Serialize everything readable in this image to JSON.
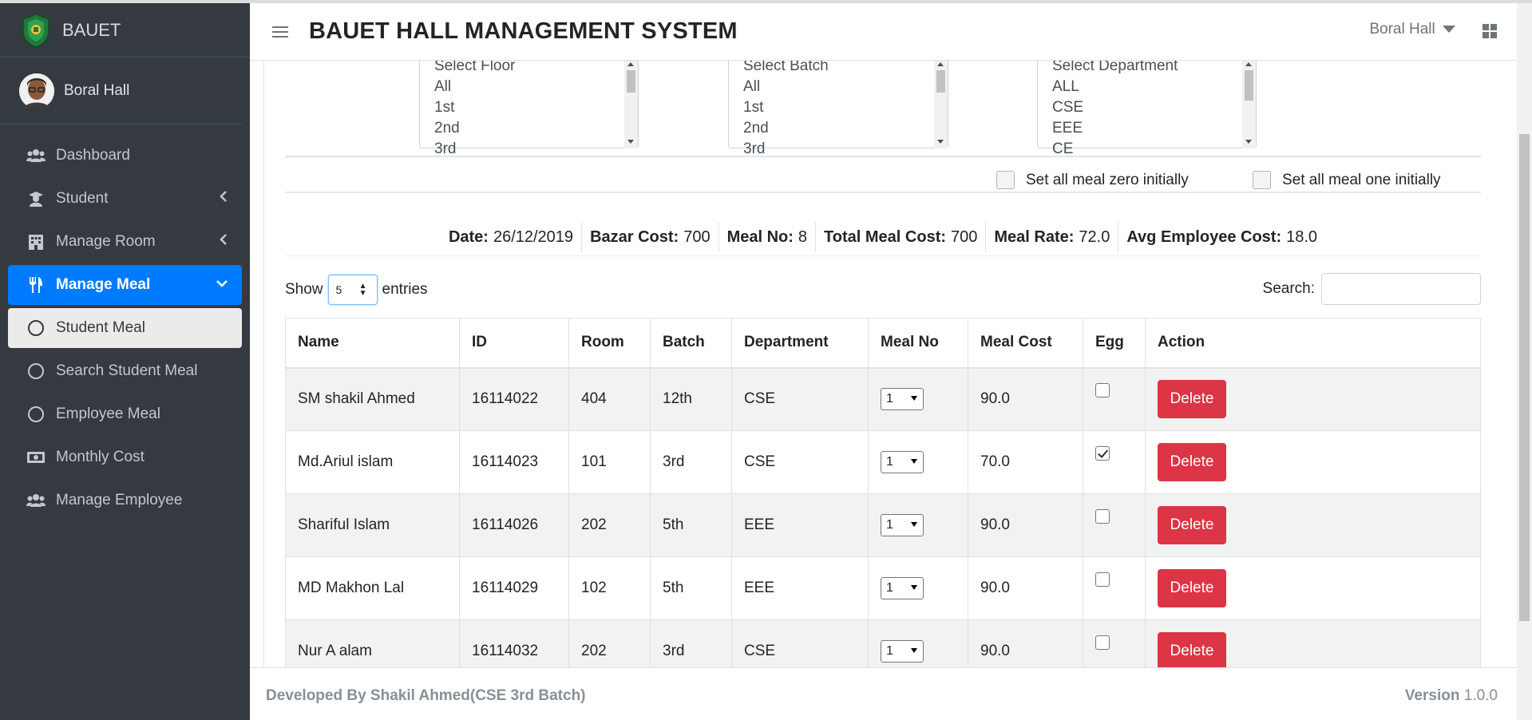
{
  "brand": {
    "name": "BAUET"
  },
  "user": {
    "name": "Boral Hall"
  },
  "sidebar": {
    "items": [
      {
        "label": "Dashboard",
        "icon": "users-icon"
      },
      {
        "label": "Student",
        "icon": "graduate-icon"
      },
      {
        "label": "Manage Room",
        "icon": "building-icon"
      },
      {
        "label": "Manage Meal",
        "icon": "utensils-icon"
      },
      {
        "label": "Student Meal",
        "icon": "circle-icon"
      },
      {
        "label": "Search Student Meal",
        "icon": "circle-icon"
      },
      {
        "label": "Employee Meal",
        "icon": "circle-icon"
      },
      {
        "label": "Monthly Cost",
        "icon": "money-icon"
      },
      {
        "label": "Manage Employee",
        "icon": "users-icon"
      }
    ]
  },
  "header": {
    "title": "BAUET HALL MANAGEMENT SYSTEM",
    "hall": "Boral Hall"
  },
  "filters": {
    "floor": [
      "Select Floor",
      "All",
      "1st",
      "2nd",
      "3rd"
    ],
    "batch": [
      "Select Batch",
      "All",
      "1st",
      "2nd",
      "3rd"
    ],
    "department": [
      "Select Department",
      "ALL",
      "CSE",
      "EEE",
      "CE"
    ]
  },
  "checkboxes": {
    "zero": "Set all meal zero initially",
    "one": "Set all meal one initially"
  },
  "stats": {
    "date_label": "Date:",
    "date": "26/12/2019",
    "bazar_label": "Bazar Cost:",
    "bazar": "700",
    "mealno_label": "Meal No:",
    "mealno": "8",
    "total_label": "Total Meal Cost:",
    "total": "700",
    "rate_label": "Meal Rate:",
    "rate": "72.0",
    "avg_label": "Avg Employee Cost:",
    "avg": "18.0"
  },
  "table_controls": {
    "show": "Show",
    "entries_value": "5",
    "entries": "entries",
    "search": "Search:"
  },
  "table": {
    "headers": [
      "Name",
      "ID",
      "Room",
      "Batch",
      "Department",
      "Meal No",
      "Meal Cost",
      "Egg",
      "Action"
    ],
    "rows": [
      {
        "name": "SM shakil Ahmed",
        "id": "16114022",
        "room": "404",
        "batch": "12th",
        "dept": "CSE",
        "meal": "1",
        "cost": "90.0",
        "egg": false,
        "action": "Delete"
      },
      {
        "name": "Md.Ariul islam",
        "id": "16114023",
        "room": "101",
        "batch": "3rd",
        "dept": "CSE",
        "meal": "1",
        "cost": "70.0",
        "egg": true,
        "action": "Delete"
      },
      {
        "name": "Shariful Islam",
        "id": "16114026",
        "room": "202",
        "batch": "5th",
        "dept": "EEE",
        "meal": "1",
        "cost": "90.0",
        "egg": false,
        "action": "Delete"
      },
      {
        "name": "MD Makhon Lal",
        "id": "16114029",
        "room": "102",
        "batch": "5th",
        "dept": "EEE",
        "meal": "1",
        "cost": "90.0",
        "egg": false,
        "action": "Delete"
      },
      {
        "name": "Nur A alam",
        "id": "16114032",
        "room": "202",
        "batch": "3rd",
        "dept": "CSE",
        "meal": "1",
        "cost": "90.0",
        "egg": false,
        "action": "Delete"
      }
    ]
  },
  "footer": {
    "credit": "Developed By Shakil Ahmed(CSE 3rd Batch)",
    "version_label": "Version",
    "version": "1.0.0"
  }
}
